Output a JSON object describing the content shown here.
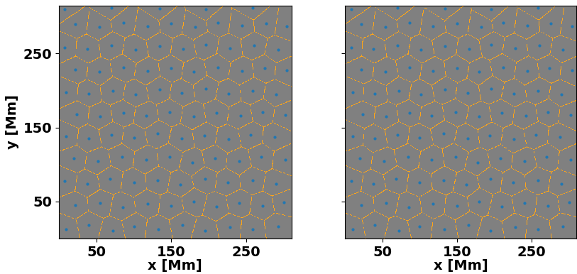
{
  "chart_data": [
    {
      "type": "scatter",
      "xlabel": "x [Mm]",
      "ylabel": "y [Mm]",
      "x": [
        10,
        40,
        72,
        100,
        133,
        165,
        195,
        228,
        258,
        292,
        22,
        55,
        85,
        118,
        150,
        180,
        210,
        240,
        272,
        300,
        8,
        38,
        68,
        100,
        132,
        162,
        195,
        225,
        258,
        290,
        20,
        52,
        84,
        116,
        148,
        178,
        208,
        240,
        270,
        302,
        10,
        40,
        70,
        100,
        132,
        164,
        194,
        226,
        256,
        288,
        24,
        55,
        86,
        116,
        148,
        180,
        210,
        242,
        272,
        302,
        10,
        40,
        72,
        102,
        134,
        164,
        196,
        226,
        258,
        290,
        22,
        54,
        86,
        118,
        150,
        180,
        212,
        244,
        274,
        304,
        8,
        38,
        70,
        102,
        134,
        166,
        196,
        228,
        260,
        292,
        22,
        54,
        86,
        118,
        150,
        182,
        212,
        244,
        276,
        304,
        8,
        70,
        134,
        196,
        258
      ],
      "y": [
        12,
        18,
        10,
        16,
        12,
        18,
        10,
        15,
        12,
        16,
        45,
        48,
        42,
        47,
        44,
        50,
        43,
        48,
        44,
        49,
        78,
        74,
        80,
        76,
        79,
        73,
        80,
        76,
        79,
        74,
        108,
        104,
        110,
        106,
        110,
        103,
        108,
        104,
        110,
        106,
        138,
        135,
        140,
        136,
        142,
        135,
        139,
        134,
        140,
        137,
        168,
        165,
        170,
        166,
        171,
        165,
        170,
        166,
        171,
        167,
        198,
        196,
        200,
        195,
        201,
        197,
        202,
        196,
        200,
        195,
        228,
        225,
        231,
        226,
        230,
        225,
        231,
        226,
        230,
        227,
        258,
        256,
        261,
        255,
        260,
        256,
        262,
        257,
        261,
        255,
        290,
        286,
        292,
        287,
        291,
        286,
        292,
        288,
        291,
        287,
        310,
        312,
        311,
        310,
        312
      ],
      "color": "#1f77b4",
      "xlim": [
        0,
        310
      ],
      "ylim": [
        0,
        315
      ],
      "xticks": [
        50,
        150,
        250
      ],
      "yticks": [
        50,
        150,
        250
      ]
    },
    {
      "type": "scatter",
      "xlabel": "x [Mm]",
      "x": [
        10,
        40,
        72,
        100,
        133,
        165,
        195,
        228,
        258,
        292,
        22,
        55,
        85,
        118,
        150,
        180,
        210,
        240,
        272,
        300,
        8,
        38,
        68,
        100,
        132,
        162,
        195,
        225,
        258,
        290,
        20,
        52,
        84,
        116,
        148,
        178,
        208,
        240,
        270,
        302,
        10,
        40,
        70,
        100,
        132,
        164,
        194,
        226,
        256,
        288,
        24,
        55,
        86,
        116,
        148,
        180,
        210,
        242,
        272,
        302,
        10,
        40,
        72,
        102,
        134,
        164,
        196,
        226,
        258,
        290,
        22,
        54,
        86,
        118,
        150,
        180,
        212,
        244,
        274,
        304,
        8,
        38,
        70,
        102,
        134,
        166,
        196,
        228,
        260,
        292,
        22,
        54,
        86,
        118,
        150,
        182,
        212,
        244,
        276,
        304,
        8,
        70,
        134,
        196,
        258
      ],
      "y": [
        12,
        18,
        10,
        16,
        12,
        18,
        10,
        15,
        12,
        16,
        45,
        48,
        42,
        47,
        44,
        50,
        43,
        48,
        44,
        49,
        78,
        74,
        80,
        76,
        79,
        73,
        80,
        76,
        79,
        74,
        108,
        104,
        110,
        106,
        110,
        103,
        108,
        104,
        110,
        106,
        138,
        135,
        140,
        136,
        142,
        135,
        139,
        134,
        140,
        137,
        168,
        165,
        170,
        166,
        171,
        165,
        170,
        166,
        171,
        167,
        198,
        196,
        200,
        195,
        201,
        197,
        202,
        196,
        200,
        195,
        228,
        225,
        231,
        226,
        230,
        225,
        231,
        226,
        230,
        227,
        258,
        256,
        261,
        255,
        260,
        256,
        262,
        257,
        261,
        255,
        290,
        286,
        292,
        287,
        291,
        286,
        292,
        288,
        291,
        287,
        310,
        312,
        311,
        310,
        312
      ],
      "color": "#1f77b4",
      "xlim": [
        0,
        310
      ],
      "ylim": [
        0,
        315
      ],
      "xticks": [
        50,
        150,
        250
      ],
      "yticks": [
        50,
        150,
        250
      ],
      "tick_labels": "x"
    }
  ]
}
